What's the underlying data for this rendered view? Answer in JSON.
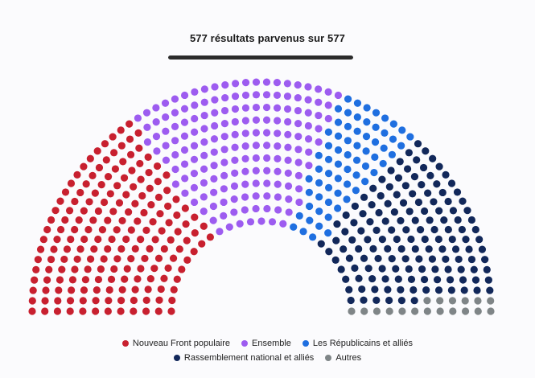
{
  "header": {
    "results_text": "577 résultats parvenus sur 577",
    "received": 577,
    "total": 577
  },
  "chart_data": {
    "type": "hemicycle",
    "total_seats": 577,
    "series": [
      {
        "name": "Nouveau Front populaire",
        "seats": 182,
        "color": "#c8202f"
      },
      {
        "name": "Ensemble",
        "seats": 168,
        "color": "#9d5cf0"
      },
      {
        "name": "Les Républicains et alliés",
        "seats": 66,
        "color": "#1f6fe0"
      },
      {
        "name": "Rassemblement national et alliés",
        "seats": 143,
        "color": "#12285a"
      },
      {
        "name": "Autres",
        "seats": 18,
        "color": "#7f8587"
      }
    ]
  }
}
